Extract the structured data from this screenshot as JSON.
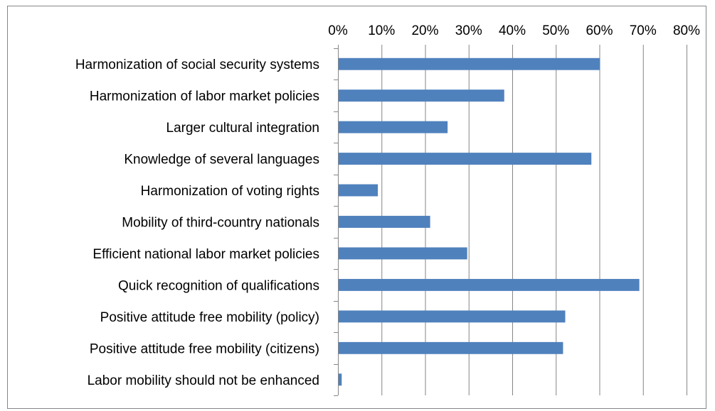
{
  "chart_data": {
    "type": "bar",
    "orientation": "horizontal",
    "title": "",
    "xlabel": "",
    "ylabel": "",
    "xlim": [
      0,
      80
    ],
    "x_ticks": [
      0,
      10,
      20,
      30,
      40,
      50,
      60,
      70,
      80
    ],
    "x_tick_labels": [
      "0%",
      "10%",
      "20%",
      "30%",
      "40%",
      "50%",
      "60%",
      "70%",
      "80%"
    ],
    "x_axis_position": "top",
    "grid": true,
    "legend": "none",
    "bar_color": "#4f81bd",
    "categories": [
      "Harmonization of social security systems",
      "Harmonization of labor market policies",
      "Larger cultural integration",
      "Knowledge of several languages",
      "Harmonization of voting rights",
      "Mobility of third-country nationals",
      "Efficient national labor market policies",
      "Quick recognition of qualifications",
      "Positive attitude free mobility (policy)",
      "Positive attitude free mobility (citizens)",
      "Labor mobility should not be enhanced"
    ],
    "values": [
      60,
      38,
      25,
      58,
      9,
      21,
      29.5,
      69,
      52,
      51.5,
      0.7
    ]
  }
}
